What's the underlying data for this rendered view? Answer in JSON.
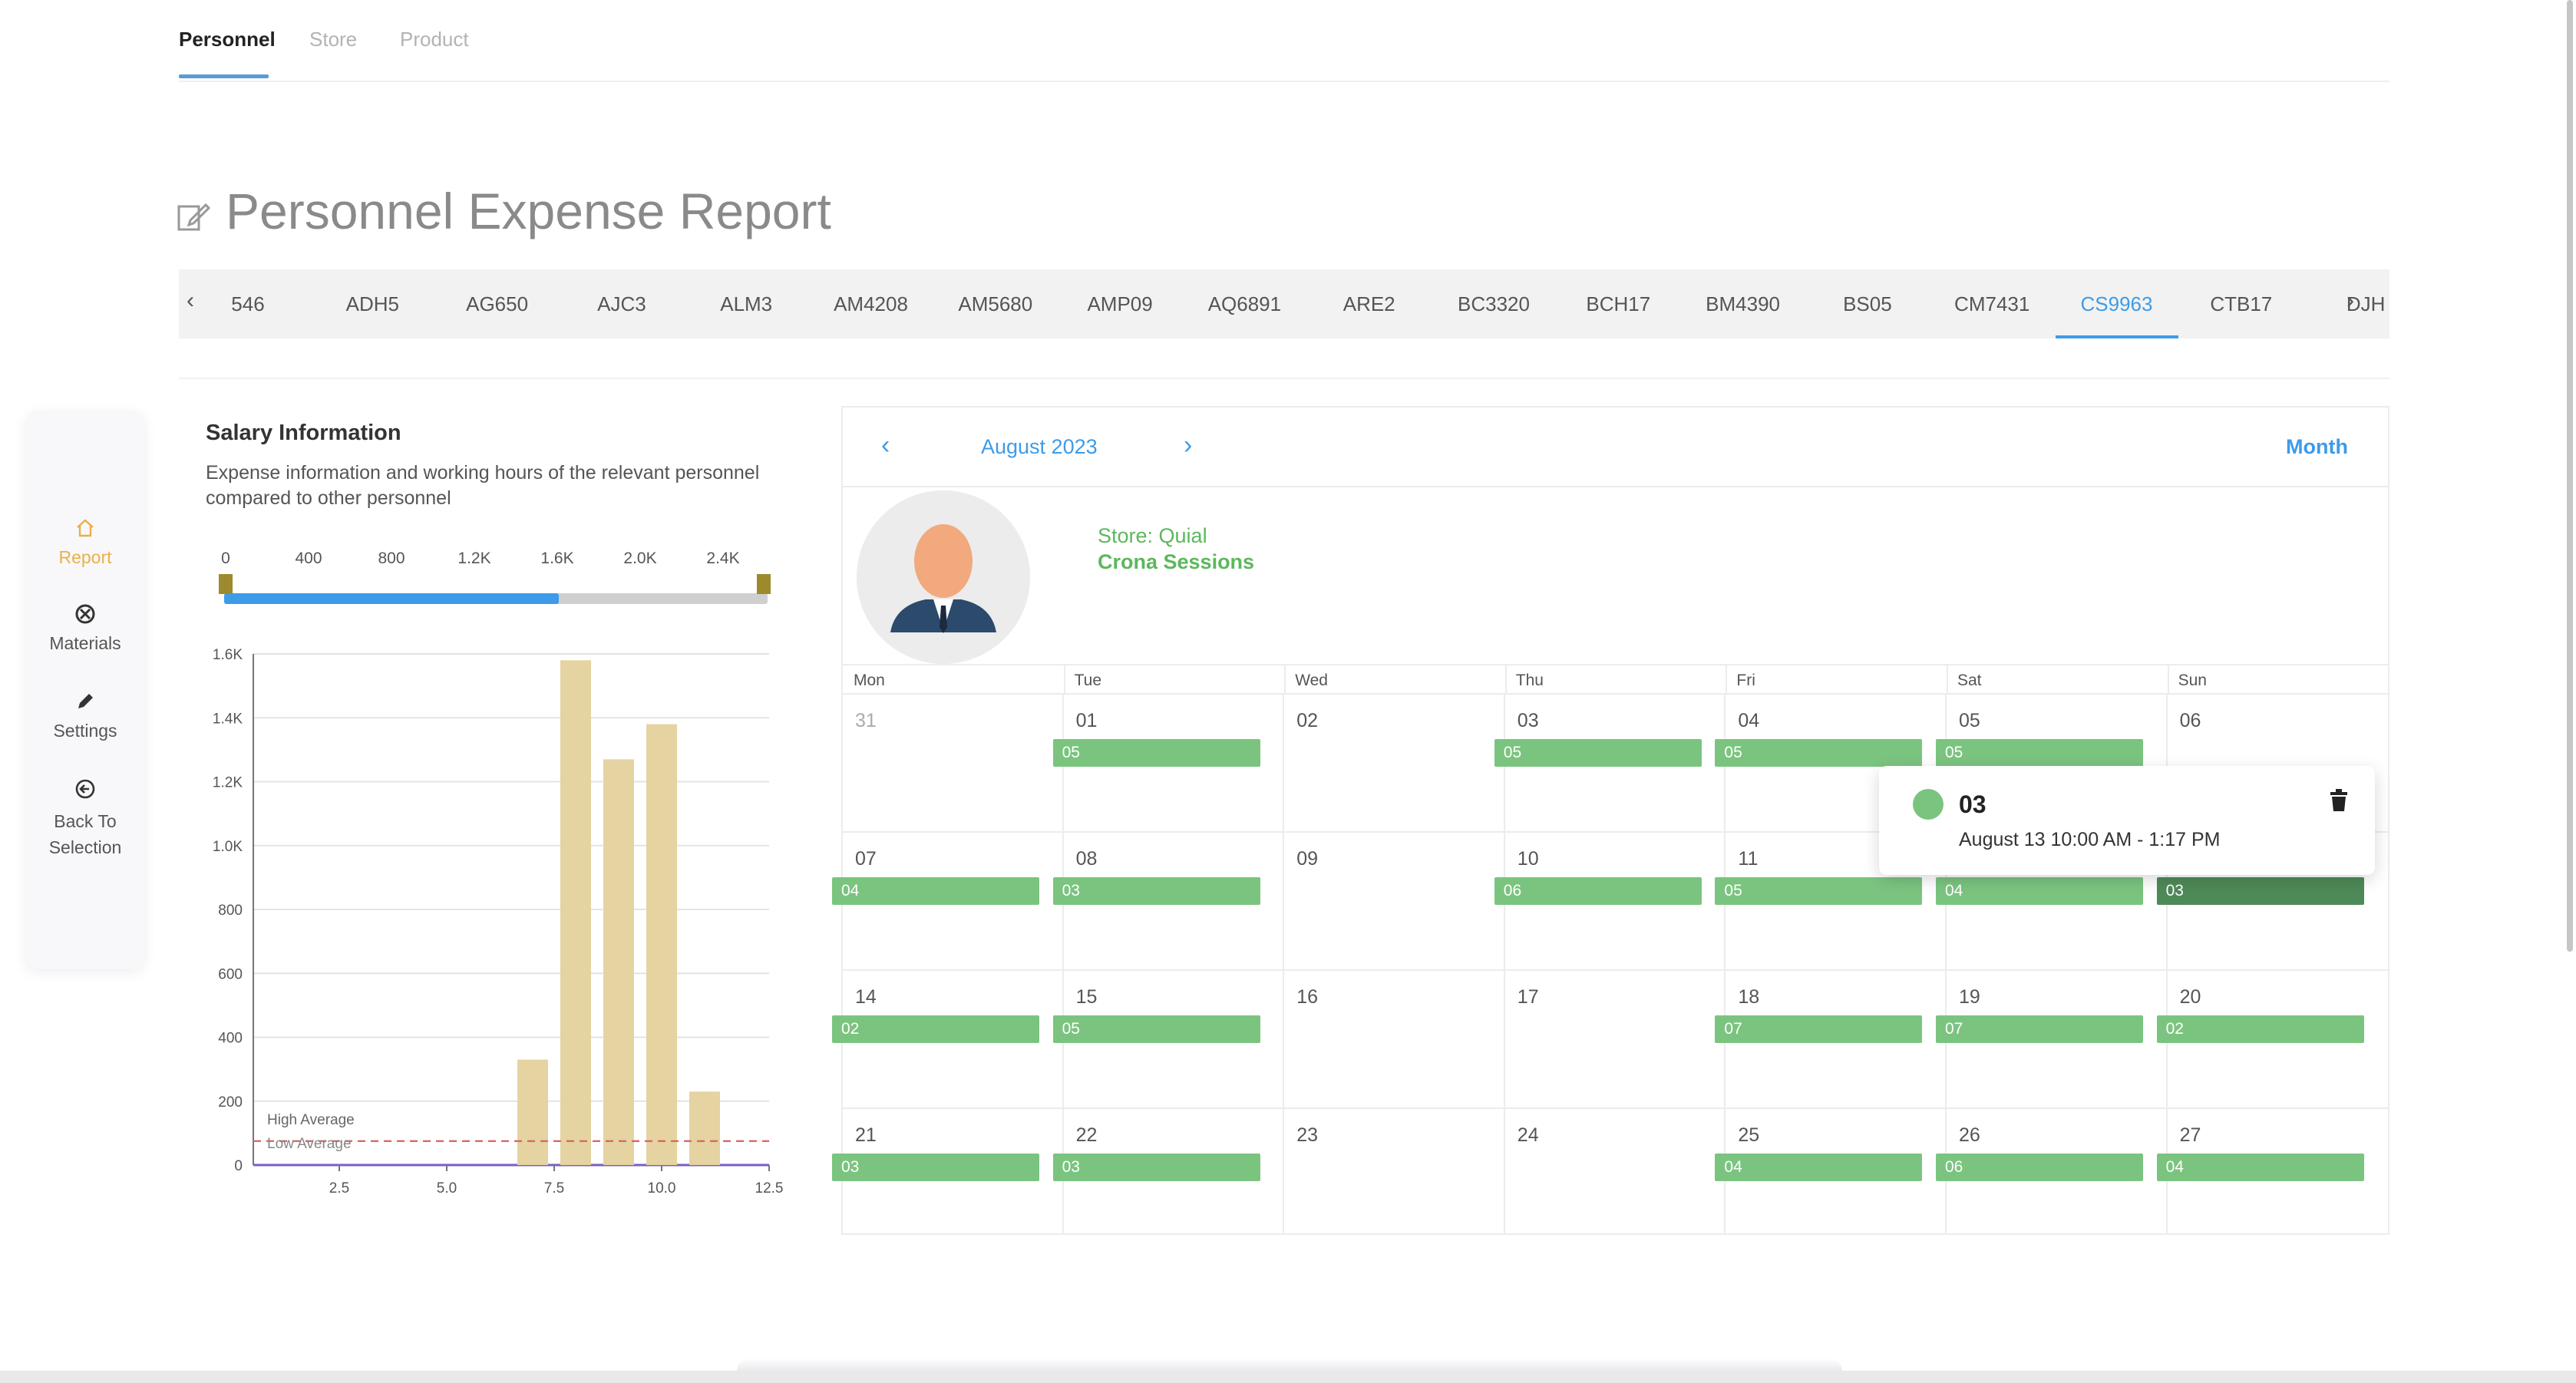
{
  "top_tabs": [
    {
      "label": "Personnel",
      "active": true
    },
    {
      "label": "Store",
      "active": false
    },
    {
      "label": "Product",
      "active": false
    }
  ],
  "page": {
    "title": "Personnel Expense Report"
  },
  "personnel_codes": [
    "546",
    "ADH5",
    "AG650",
    "AJC3",
    "ALM3",
    "AM4208",
    "AM5680",
    "AMP09",
    "AQ6891",
    "ARE2",
    "BC3320",
    "BCH17",
    "BM4390",
    "BS05",
    "CM7431",
    "CS9963",
    "CTB17",
    "DJH"
  ],
  "active_code": "CS9963",
  "side_menu": [
    {
      "label": "Report",
      "icon": "home-icon",
      "active": true
    },
    {
      "label": "Materials",
      "icon": "materials-icon",
      "active": false
    },
    {
      "label": "Settings",
      "icon": "pencil-icon",
      "active": false
    },
    {
      "label": "Back To Selection",
      "icon": "back-icon",
      "active": false
    }
  ],
  "salary": {
    "title": "Salary Information",
    "description": "Expense information and working hours of the relevant personnel compared to other personnel",
    "slider_ticks": [
      "0",
      "400",
      "800",
      "1.2K",
      "1.6K",
      "2.0K",
      "2.4K"
    ],
    "slider_range": [
      0,
      2600
    ],
    "slider_value": 1600
  },
  "chart_data": {
    "type": "bar",
    "x": [
      7.0,
      8.0,
      9.0,
      10.0,
      11.0
    ],
    "values": [
      330,
      1580,
      1270,
      1380,
      230
    ],
    "xlim": [
      0.5,
      12.5
    ],
    "ylim": [
      0,
      1600
    ],
    "x_ticks": [
      "2.5",
      "5.0",
      "7.5",
      "10.0",
      "12.5"
    ],
    "x_tick_values": [
      2.5,
      5.0,
      7.5,
      10.0,
      12.5
    ],
    "y_ticks": [
      "0",
      "200",
      "400",
      "600",
      "800",
      "1.0K",
      "1.2K",
      "1.4K",
      "1.6K"
    ],
    "y_tick_values": [
      0,
      200,
      400,
      600,
      800,
      1000,
      1200,
      1400,
      1600
    ],
    "reference_lines": [
      {
        "label": "High Average",
        "value": 75,
        "color": "#e06666"
      },
      {
        "label": "Low Average",
        "value": 75,
        "color": "#e06666"
      }
    ],
    "bar_color": "#e5d3a2",
    "grid": true
  },
  "calendar": {
    "month_label": "August 2023",
    "view_label": "Month",
    "store_label": "Store: Quial",
    "session_name": "Crona Sessions",
    "days_of_week": [
      "Mon",
      "Tue",
      "Wed",
      "Thu",
      "Fri",
      "Sat",
      "Sun"
    ],
    "weeks": [
      [
        {
          "day": "31",
          "muted": true
        },
        {
          "day": "01"
        },
        {
          "day": "02"
        },
        {
          "day": "03"
        },
        {
          "day": "04"
        },
        {
          "day": "05"
        },
        {
          "day": "06"
        }
      ],
      [
        {
          "day": "07"
        },
        {
          "day": "08"
        },
        {
          "day": "09"
        },
        {
          "day": "10"
        },
        {
          "day": "11"
        },
        {
          "day": ""
        },
        {
          "day": ""
        }
      ],
      [
        {
          "day": "14"
        },
        {
          "day": "15"
        },
        {
          "day": "16"
        },
        {
          "day": "17"
        },
        {
          "day": "18"
        },
        {
          "day": "19"
        },
        {
          "day": "20"
        }
      ],
      [
        {
          "day": "21"
        },
        {
          "day": "22"
        },
        {
          "day": "23"
        },
        {
          "day": "24"
        },
        {
          "day": "25"
        },
        {
          "day": "26"
        },
        {
          "day": "27"
        }
      ]
    ],
    "events": [
      {
        "week": 0,
        "col": 1,
        "label": "05"
      },
      {
        "week": 0,
        "col": 3,
        "label": "05"
      },
      {
        "week": 0,
        "col": 4,
        "label": "05"
      },
      {
        "week": 0,
        "col": 5,
        "label": "05"
      },
      {
        "week": 1,
        "col": 0,
        "label": "04"
      },
      {
        "week": 1,
        "col": 1,
        "label": "03"
      },
      {
        "week": 1,
        "col": 3,
        "label": "06"
      },
      {
        "week": 1,
        "col": 4,
        "label": "05"
      },
      {
        "week": 1,
        "col": 5,
        "label": "04"
      },
      {
        "week": 1,
        "col": 6,
        "label": "03",
        "selected": true
      },
      {
        "week": 2,
        "col": 0,
        "label": "02"
      },
      {
        "week": 2,
        "col": 1,
        "label": "05"
      },
      {
        "week": 2,
        "col": 4,
        "label": "07"
      },
      {
        "week": 2,
        "col": 5,
        "label": "07"
      },
      {
        "week": 2,
        "col": 6,
        "label": "02"
      },
      {
        "week": 3,
        "col": 0,
        "label": "03"
      },
      {
        "week": 3,
        "col": 1,
        "label": "03"
      },
      {
        "week": 3,
        "col": 4,
        "label": "04"
      },
      {
        "week": 3,
        "col": 5,
        "label": "06"
      },
      {
        "week": 3,
        "col": 6,
        "label": "04"
      }
    ],
    "popup": {
      "title": "03",
      "time": "August 13 10:00 AM - 1:17 PM"
    }
  },
  "colors": {
    "accent": "#3d9be9",
    "event": "#7bc47f",
    "event_selected": "#4e8a58",
    "active_menu": "#e8b04a"
  }
}
